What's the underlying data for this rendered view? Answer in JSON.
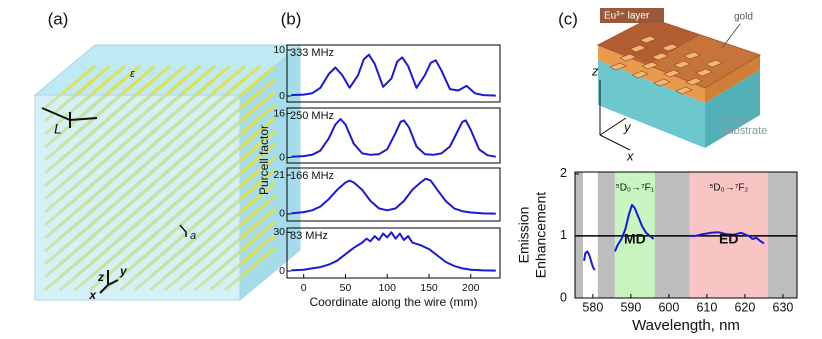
{
  "panel_labels": [
    "(a)",
    "(b)",
    "(c)"
  ],
  "panel_a": {
    "epsilon": "ε",
    "L": "L",
    "a": "a",
    "axes": [
      "z",
      "y",
      "x"
    ]
  },
  "panel_b": {
    "ylabel": "Purcell factor"
  },
  "panel_c": {
    "layer": "Eu³⁺ layer",
    "gold": "gold",
    "substrate": [
      "glass",
      "substrate"
    ],
    "axes": [
      "z",
      "y",
      "x"
    ]
  },
  "chart_data": [
    {
      "type": "line",
      "annotation": "333 MHz",
      "color": "#1a1ad6",
      "xlim": [
        -20,
        235
      ],
      "ylim": [
        -1.3,
        11.1
      ],
      "yticks": [
        0,
        10
      ],
      "x": [
        -15,
        0,
        10,
        20,
        30,
        38,
        46,
        55,
        65,
        72,
        78,
        85,
        95,
        105,
        112,
        118,
        125,
        135,
        145,
        152,
        158,
        165,
        175,
        185,
        195,
        205,
        215,
        230
      ],
      "values": [
        0.2,
        0.3,
        0.6,
        1.8,
        4.8,
        6.2,
        4.6,
        1.8,
        4.5,
        8.0,
        9.0,
        7.0,
        2.0,
        3.8,
        7.5,
        8.4,
        6.5,
        1.8,
        4.5,
        7.2,
        7.8,
        5.5,
        1.5,
        1.2,
        2.2,
        0.6,
        0.2,
        0.1
      ]
    },
    {
      "type": "line",
      "annotation": "250 MHz",
      "color": "#1a1ad6",
      "xlim": [
        -20,
        235
      ],
      "ylim": [
        -2,
        18
      ],
      "yticks": [
        0,
        16
      ],
      "x": [
        -15,
        0,
        10,
        20,
        30,
        38,
        44,
        50,
        60,
        70,
        80,
        90,
        100,
        110,
        116,
        120,
        126,
        135,
        145,
        155,
        165,
        175,
        185,
        190,
        194,
        200,
        210,
        220,
        230
      ],
      "values": [
        0.3,
        0.5,
        1,
        2.5,
        7,
        12,
        14,
        12,
        5,
        1.5,
        1,
        1.2,
        3,
        9,
        13,
        13.5,
        11,
        4,
        1.2,
        1,
        1.5,
        4,
        10,
        13,
        13.5,
        10,
        3,
        0.8,
        0.3
      ]
    },
    {
      "type": "line",
      "annotation": "166 MHz",
      "color": "#1a1ad6",
      "xlim": [
        -20,
        235
      ],
      "ylim": [
        -3.8,
        24.8
      ],
      "yticks": [
        0,
        21
      ],
      "x": [
        -15,
        0,
        10,
        20,
        30,
        40,
        50,
        55,
        60,
        70,
        80,
        90,
        100,
        110,
        120,
        130,
        140,
        146,
        152,
        160,
        170,
        180,
        190,
        200,
        215,
        230
      ],
      "values": [
        0.3,
        1,
        2,
        4,
        8,
        13,
        17,
        18,
        17,
        13,
        7,
        3,
        2,
        3,
        7,
        13,
        17,
        19,
        18,
        13,
        7,
        3,
        1.5,
        0.8,
        0.3,
        0.2
      ]
    },
    {
      "type": "line",
      "annotation": "83 MHz",
      "color": "#1a1ad6",
      "xlim": [
        -20,
        235
      ],
      "ylim": [
        -5.4,
        33.3
      ],
      "yticks": [
        0,
        30
      ],
      "xticks": [
        0,
        50,
        100,
        150,
        200
      ],
      "xlabel": "Coordinate along the wire (mm)",
      "x": [
        -15,
        0,
        10,
        20,
        30,
        40,
        50,
        60,
        70,
        75,
        80,
        85,
        90,
        95,
        100,
        105,
        110,
        115,
        120,
        125,
        130,
        140,
        150,
        160,
        170,
        180,
        190,
        200,
        215,
        230
      ],
      "values": [
        0.5,
        1,
        2,
        3,
        5,
        8,
        13,
        18,
        22,
        25,
        23,
        27,
        24,
        29,
        26,
        30,
        25,
        29,
        24,
        27,
        22,
        20,
        17,
        12,
        7,
        4,
        2,
        1,
        0.5,
        0.3
      ]
    },
    {
      "type": "line",
      "color": "#1a1ad6",
      "xlim": [
        575.3,
        633.7
      ],
      "ylim": [
        0,
        2.03
      ],
      "yticks": [
        0,
        1,
        2
      ],
      "xticks": [
        580,
        590,
        600,
        610,
        620,
        630
      ],
      "xlabel": "Wavelength, nm",
      "ylabel": [
        "Emission",
        "Enhancement"
      ],
      "hline": 1,
      "bands": [
        {
          "from": 575.3,
          "to": 577.4,
          "color": "#bdbdbd"
        },
        {
          "from": 581.3,
          "to": 585.8,
          "color": "#bdbdbd"
        },
        {
          "from": 585.8,
          "to": 596.3,
          "color": "#c8f5c0"
        },
        {
          "from": 596.3,
          "to": 605.5,
          "color": "#bdbdbd"
        },
        {
          "from": 605.5,
          "to": 626,
          "color": "#f8c4c4"
        },
        {
          "from": 626,
          "to": 633.7,
          "color": "#bdbdbd"
        }
      ],
      "annotations": [
        "⁵D₀→⁷F₁",
        "MD",
        "⁵D₀→⁷F₂",
        "ED"
      ],
      "x": [
        577.7,
        578,
        578.5,
        579,
        579.5,
        580,
        580.5,
        583,
        585.8,
        586.5,
        587.5,
        588.5,
        589.5,
        590.3,
        591,
        592,
        593,
        594,
        595,
        596,
        600,
        605.5,
        607,
        609,
        611,
        613,
        615,
        617,
        619,
        621,
        622,
        623,
        624,
        625
      ],
      "values": [
        0.6,
        0.72,
        0.75,
        0.7,
        0.6,
        0.5,
        0.45,
        null,
        0.75,
        0.85,
        0.95,
        1.1,
        1.35,
        1.5,
        1.45,
        1.3,
        1.15,
        1.05,
        1.0,
        0.95,
        null,
        1.0,
        1.0,
        1.03,
        1.05,
        1.06,
        1.03,
        1.02,
        1.05,
        1.0,
        0.95,
        0.97,
        0.92,
        0.88
      ]
    }
  ]
}
